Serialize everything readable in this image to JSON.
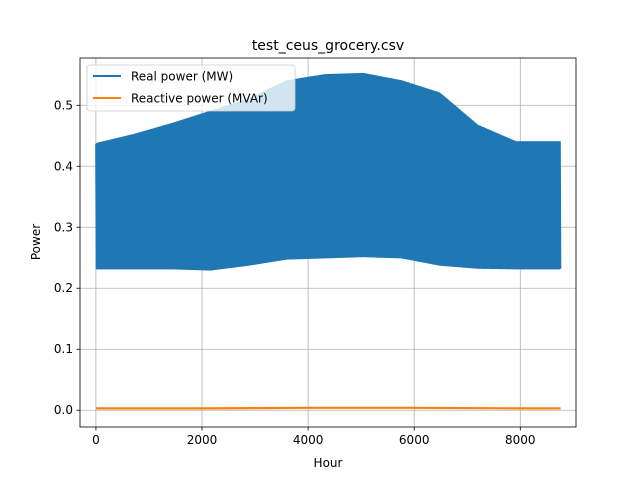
{
  "chart_data": {
    "type": "line",
    "title": "test_ceus_grocery.csv",
    "xlabel": "Hour",
    "ylabel": "Power",
    "xlim": [
      -300,
      9050
    ],
    "ylim": [
      -0.0275,
      0.5775
    ],
    "xticks": [
      0,
      2000,
      4000,
      6000,
      8000
    ],
    "xtick_labels": [
      "0",
      "2000",
      "4000",
      "6000",
      "8000"
    ],
    "yticks": [
      0.0,
      0.1,
      0.2,
      0.3,
      0.4,
      0.5
    ],
    "ytick_labels": [
      "0.0",
      "0.1",
      "0.2",
      "0.3",
      "0.4",
      "0.5"
    ],
    "grid": true,
    "legend": "top-left",
    "series": [
      {
        "name": "Real power (MW)",
        "color": "#1f77b4",
        "style": "dense-daily-band",
        "x": [
          0,
          720,
          1440,
          2160,
          2880,
          3600,
          4320,
          5040,
          5760,
          6480,
          7200,
          7920,
          8759
        ],
        "upper": [
          0.437,
          0.452,
          0.47,
          0.49,
          0.51,
          0.54,
          0.55,
          0.552,
          0.54,
          0.52,
          0.467,
          0.44,
          0.44
        ],
        "lower": [
          0.232,
          0.232,
          0.232,
          0.23,
          0.238,
          0.248,
          0.25,
          0.252,
          0.25,
          0.238,
          0.233,
          0.232,
          0.232
        ]
      },
      {
        "name": "Reactive power (MVAr)",
        "color": "#ff7f0e",
        "style": "line",
        "x": [
          0,
          2000,
          4000,
          6000,
          8000,
          8759
        ],
        "values": [
          0.003,
          0.003,
          0.004,
          0.004,
          0.003,
          0.003
        ]
      }
    ]
  }
}
